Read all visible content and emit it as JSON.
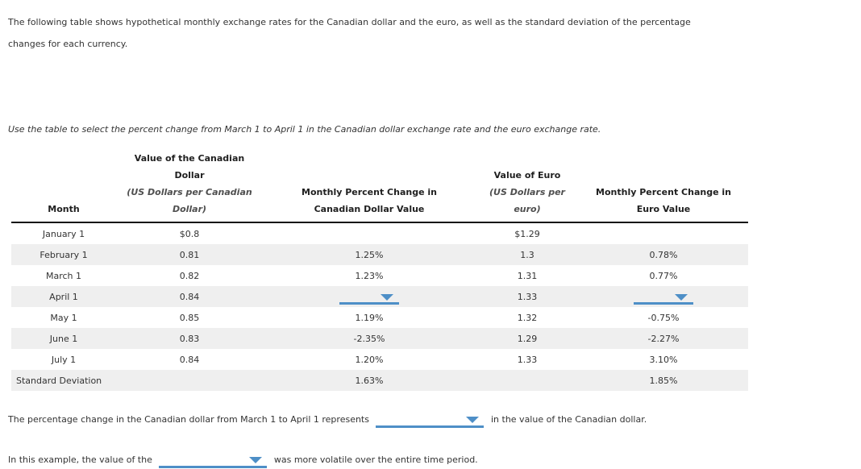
{
  "intro_text": "The following table shows hypothetical monthly exchange rates for the Canadian dollar and the euro, as well as the standard deviation of the percentage changes for each currency.",
  "instruction_text": "Use the table to select the percent change from March 1 to April 1 in the Canadian dollar exchange rate and the euro exchange rate.",
  "table": {
    "columns": [
      {
        "title": "Month",
        "subtitle": ""
      },
      {
        "title": "Value of the Canadian Dollar",
        "subtitle": "(US Dollars per Canadian Dollar)"
      },
      {
        "title": "Monthly Percent Change in Canadian Dollar Value",
        "subtitle": ""
      },
      {
        "title": "Value of Euro",
        "subtitle": "(US Dollars per euro)"
      },
      {
        "title": "Monthly Percent Change in Euro Value",
        "subtitle": ""
      }
    ],
    "rows": [
      {
        "cells": [
          "January 1",
          "$0.8",
          "",
          "$1.29",
          ""
        ]
      },
      {
        "cells": [
          "February 1",
          "0.81",
          "1.25%",
          "1.3",
          "0.78%"
        ]
      },
      {
        "cells": [
          "March 1",
          "0.82",
          "1.23%",
          "1.31",
          "0.77%"
        ]
      },
      {
        "cells": [
          "April 1",
          "0.84",
          {
            "dropdown": true
          },
          "1.33",
          {
            "dropdown": true
          }
        ]
      },
      {
        "cells": [
          "May 1",
          "0.85",
          "1.19%",
          "1.32",
          "-0.75%"
        ]
      },
      {
        "cells": [
          "June 1",
          "0.83",
          "-2.35%",
          "1.29",
          "-2.27%"
        ]
      },
      {
        "cells": [
          "July 1",
          "0.84",
          "1.20%",
          "1.33",
          "3.10%"
        ]
      },
      {
        "cells": [
          "Standard Deviation",
          "",
          "1.63%",
          "",
          "1.85%"
        ]
      }
    ]
  },
  "question1": {
    "before": "The percentage change in the Canadian dollar from March 1 to April 1 represents",
    "after": "in the value of the Canadian dollar."
  },
  "question2": {
    "before": "In this example, the value of the",
    "after": "was more volatile over the entire time period."
  },
  "colors": {
    "accent_blue": "#4e8fc7",
    "row_stripe": "#efefef",
    "header_rule": "#111111"
  }
}
